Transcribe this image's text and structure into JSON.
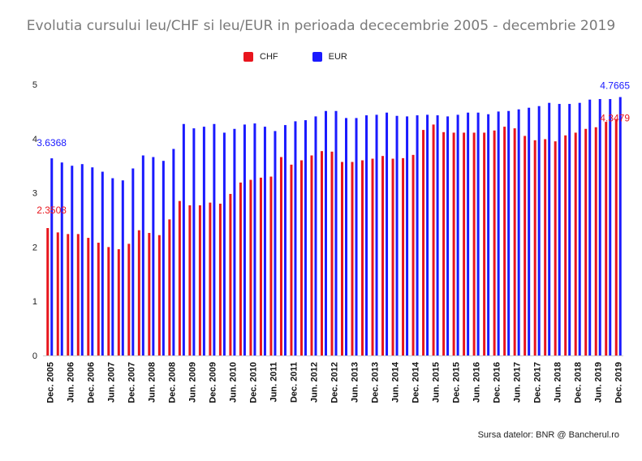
{
  "chart_data": {
    "type": "bar",
    "title": "Evolutia cursului leu/CHF si leu/EUR in perioada dececembrie 2005 - decembrie 2019",
    "source": "Sursa datelor: BNR @ Bancherul.ro",
    "ylim": [
      0,
      5
    ],
    "yticks": [
      "0",
      "1",
      "2",
      "3",
      "4",
      "5"
    ],
    "grid": false,
    "legend_position": "top",
    "colors": {
      "CHF": "#e8151d",
      "EUR": "#1a1aff"
    },
    "categories": [
      "Dec. 2005",
      "Mar. 2006",
      "Jun. 2006",
      "Sep. 2006",
      "Dec. 2006",
      "Mar. 2007",
      "Jun. 2007",
      "Sep. 2007",
      "Dec. 2007",
      "Mar. 2008",
      "Jun. 2008",
      "Sep. 2008",
      "Dec. 2008",
      "Mar. 2009",
      "Jun. 2009",
      "Sep. 2009",
      "Dec. 2009",
      "Mar. 2010",
      "Jun. 2010",
      "Sep. 2010",
      "Dec. 2010",
      "Mar. 2011",
      "Jun. 2011",
      "Sep. 2011",
      "Dec. 2011",
      "Mar. 2012",
      "Jun. 2012",
      "Sep. 2012",
      "Dec. 2012",
      "Mar. 2013",
      "Jun. 2013",
      "Sep. 2013",
      "Dec. 2013",
      "Mar. 2014",
      "Jun. 2014",
      "Sep. 2014",
      "Dec. 2014",
      "Mar. 2015",
      "Jun. 2015",
      "Sep. 2015",
      "Dec. 2015",
      "Mar. 2016",
      "Jun. 2016",
      "Sep. 2016",
      "Dec. 2016",
      "Mar. 2017",
      "Jun. 2017",
      "Sep. 2017",
      "Dec. 2017",
      "Mar. 2018",
      "Jun. 2018",
      "Sep. 2018",
      "Dec. 2018",
      "Mar. 2019",
      "Jun. 2019",
      "Sep. 2019",
      "Dec. 2019"
    ],
    "shown_xtick_labels": [
      "Dec. 2005",
      "Jun. 2006",
      "Dec. 2006",
      "Jun. 2007",
      "Dec. 2007",
      "Jun. 2008",
      "Dec. 2008",
      "Jun. 2009",
      "Dec. 2009",
      "Jun. 2010",
      "Dec. 2010",
      "Jun. 2011",
      "Dec. 2011",
      "Jun. 2012",
      "Dec. 2012",
      "Jun. 2013",
      "Dec. 2013",
      "Jun. 2014",
      "Dec. 2014",
      "Jun. 2015",
      "Dec. 2015",
      "Jun. 2016",
      "Dec. 2016",
      "Jun. 2017",
      "Dec. 2017",
      "Jun. 2018",
      "Dec. 2018",
      "Jun. 2019",
      "Dec. 2019"
    ],
    "series": [
      {
        "name": "CHF",
        "values": [
          2.3503,
          2.27,
          2.24,
          2.24,
          2.17,
          2.08,
          2.0,
          1.96,
          2.06,
          2.31,
          2.26,
          2.22,
          2.51,
          2.85,
          2.77,
          2.77,
          2.82,
          2.8,
          2.98,
          3.19,
          3.24,
          3.28,
          3.3,
          3.66,
          3.52,
          3.6,
          3.69,
          3.77,
          3.76,
          3.57,
          3.57,
          3.6,
          3.63,
          3.68,
          3.63,
          3.64,
          3.7,
          4.16,
          4.26,
          4.12,
          4.11,
          4.11,
          4.11,
          4.11,
          4.15,
          4.22,
          4.19,
          4.05,
          3.97,
          3.99,
          3.95,
          4.06,
          4.11,
          4.18,
          4.21,
          4.31,
          4.3479
        ]
      },
      {
        "name": "EUR",
        "values": [
          3.6368,
          3.56,
          3.5,
          3.53,
          3.47,
          3.39,
          3.27,
          3.23,
          3.45,
          3.69,
          3.66,
          3.59,
          3.81,
          4.27,
          4.19,
          4.22,
          4.27,
          4.11,
          4.18,
          4.26,
          4.28,
          4.22,
          4.14,
          4.25,
          4.32,
          4.34,
          4.41,
          4.51,
          4.51,
          4.38,
          4.38,
          4.43,
          4.44,
          4.48,
          4.42,
          4.41,
          4.43,
          4.44,
          4.43,
          4.41,
          4.44,
          4.48,
          4.48,
          4.45,
          4.5,
          4.51,
          4.54,
          4.57,
          4.6,
          4.66,
          4.64,
          4.64,
          4.66,
          4.72,
          4.73,
          4.73,
          4.7665
        ]
      }
    ],
    "data_labels": [
      {
        "series": "EUR",
        "index": 0,
        "text": "3.6368"
      },
      {
        "series": "CHF",
        "index": 0,
        "text": "2.3503"
      },
      {
        "series": "EUR",
        "index": 56,
        "text": "4.7665"
      },
      {
        "series": "CHF",
        "index": 56,
        "text": "4.3479"
      }
    ]
  }
}
